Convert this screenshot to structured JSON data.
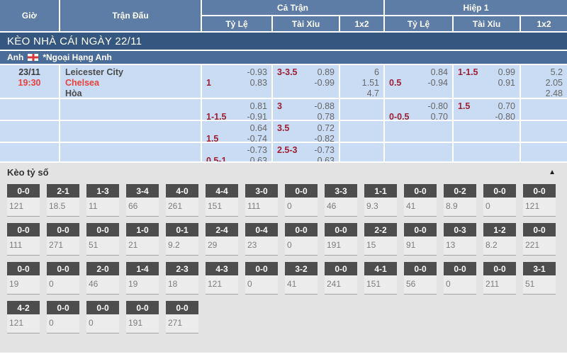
{
  "table": {
    "header": {
      "time": "Giờ",
      "match": "Trận Đấu",
      "full_match": "Cả Trận",
      "first_half": "Hiệp 1",
      "sub_columns": [
        "Tỷ Lệ",
        "Tài Xỉu",
        "1x2"
      ]
    },
    "date_bar": "KÈO NHÀ CÁI NGÀY 22/11",
    "league_bar": {
      "country": "Anh",
      "flag_icon": "england-flag",
      "league_name": "*Ngoại Hạng Anh"
    },
    "rows": [
      {
        "date": "23/11",
        "time": "19:30",
        "teams": [
          {
            "name": "Leicester City",
            "highlight": false
          },
          {
            "name": "Chelsea",
            "highlight": true
          },
          {
            "name": "Hòa",
            "highlight": false
          }
        ],
        "full": {
          "handicap": {
            "line": "1",
            "line_row": 2,
            "odds": [
              "-0.93",
              "0.83"
            ]
          },
          "over_under": {
            "line": "3-3.5",
            "line_row": 1,
            "odds": [
              "0.89",
              "-0.99"
            ]
          },
          "one_x_two": [
            "6",
            "1.51",
            "4.7"
          ]
        },
        "half": {
          "handicap": {
            "line": "0.5",
            "line_row": 2,
            "odds": [
              "0.84",
              "-0.94"
            ]
          },
          "over_under": {
            "line": "1-1.5",
            "line_row": 1,
            "odds": [
              "0.99",
              "0.91"
            ]
          },
          "one_x_two": [
            "5.2",
            "2.05",
            "2.48"
          ]
        }
      },
      {
        "date": "",
        "time": "",
        "teams": [],
        "full": {
          "handicap": {
            "line": "1-1.5",
            "line_row": 2,
            "odds": [
              "0.81",
              "-0.91"
            ]
          },
          "over_under": {
            "line": "3",
            "line_row": 1,
            "odds": [
              "-0.88",
              "0.78"
            ]
          },
          "one_x_two": []
        },
        "half": {
          "handicap": {
            "line": "0-0.5",
            "line_row": 2,
            "odds": [
              "-0.80",
              "0.70"
            ]
          },
          "over_under": {
            "line": "1.5",
            "line_row": 1,
            "odds": [
              "0.70",
              "-0.80"
            ]
          },
          "one_x_two": []
        }
      },
      {
        "date": "",
        "time": "",
        "teams": [],
        "full": {
          "handicap": {
            "line": "1.5",
            "line_row": 2,
            "odds": [
              "0.64",
              "-0.74"
            ]
          },
          "over_under": {
            "line": "3.5",
            "line_row": 1,
            "odds": [
              "0.72",
              "-0.82"
            ]
          },
          "one_x_two": []
        },
        "half": {
          "handicap": null,
          "over_under": null,
          "one_x_two": []
        }
      },
      {
        "date": "",
        "time": "",
        "teams": [],
        "full": {
          "handicap": {
            "line": "0.5-1",
            "line_row": 2,
            "odds": [
              "-0.73",
              "0.63"
            ]
          },
          "over_under": {
            "line": "2.5-3",
            "line_row": 1,
            "odds": [
              "-0.73",
              "0.63"
            ]
          },
          "one_x_two": []
        },
        "half": {
          "handicap": null,
          "over_under": null,
          "one_x_two": []
        }
      }
    ]
  },
  "score_section": {
    "title": "Kèo tỷ số",
    "collapse_icon": "▲",
    "rows": [
      [
        {
          "score": "0-0",
          "odds": "121"
        },
        {
          "score": "2-1",
          "odds": "18.5"
        },
        {
          "score": "1-3",
          "odds": "11"
        },
        {
          "score": "3-4",
          "odds": "66"
        },
        {
          "score": "4-0",
          "odds": "261"
        },
        {
          "score": "4-4",
          "odds": "151"
        },
        {
          "score": "3-0",
          "odds": "111"
        },
        {
          "score": "0-0",
          "odds": "0"
        },
        {
          "score": "3-3",
          "odds": "46"
        },
        {
          "score": "1-1",
          "odds": "9.3"
        },
        {
          "score": "0-0",
          "odds": "41"
        },
        {
          "score": "0-2",
          "odds": "8.9"
        },
        {
          "score": "0-0",
          "odds": "0"
        },
        {
          "score": "0-0",
          "odds": "121"
        }
      ],
      [
        {
          "score": "0-0",
          "odds": "111"
        },
        {
          "score": "0-0",
          "odds": "271"
        },
        {
          "score": "0-0",
          "odds": "51"
        },
        {
          "score": "1-0",
          "odds": "21"
        },
        {
          "score": "0-1",
          "odds": "9.2"
        },
        {
          "score": "2-4",
          "odds": "29"
        },
        {
          "score": "0-4",
          "odds": "23"
        },
        {
          "score": "0-0",
          "odds": "0"
        },
        {
          "score": "0-0",
          "odds": "191"
        },
        {
          "score": "2-2",
          "odds": "15"
        },
        {
          "score": "0-0",
          "odds": "91"
        },
        {
          "score": "0-3",
          "odds": "13"
        },
        {
          "score": "1-2",
          "odds": "8.2"
        },
        {
          "score": "0-0",
          "odds": "221"
        }
      ],
      [
        {
          "score": "0-0",
          "odds": "19"
        },
        {
          "score": "0-0",
          "odds": "0"
        },
        {
          "score": "2-0",
          "odds": "46"
        },
        {
          "score": "1-4",
          "odds": "19"
        },
        {
          "score": "2-3",
          "odds": "18"
        },
        {
          "score": "4-3",
          "odds": "121"
        },
        {
          "score": "0-0",
          "odds": "0"
        },
        {
          "score": "3-2",
          "odds": "41"
        },
        {
          "score": "0-0",
          "odds": "241"
        },
        {
          "score": "4-1",
          "odds": "151"
        },
        {
          "score": "0-0",
          "odds": "56"
        },
        {
          "score": "0-0",
          "odds": "0"
        },
        {
          "score": "0-0",
          "odds": "211"
        },
        {
          "score": "3-1",
          "odds": "51"
        }
      ],
      [
        {
          "score": "4-2",
          "odds": "121"
        },
        {
          "score": "0-0",
          "odds": "0"
        },
        {
          "score": "0-0",
          "odds": "0"
        },
        {
          "score": "0-0",
          "odds": "191"
        },
        {
          "score": "0-0",
          "odds": "271"
        }
      ]
    ]
  }
}
